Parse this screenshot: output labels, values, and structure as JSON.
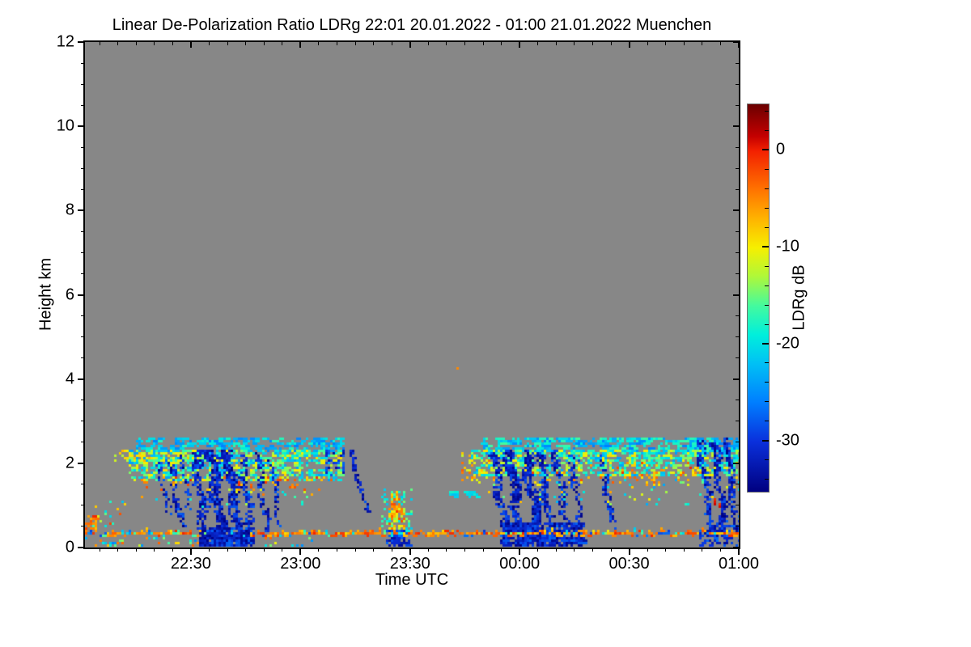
{
  "chart_data": {
    "type": "heatmap",
    "title": "Linear De-Polarization Ratio LDRg   22:01 20.01.2022 - 01:00 21.01.2022 Muenchen",
    "xlabel": "Time UTC",
    "ylabel": "Height km",
    "site": "Muenchen",
    "time_start": "22:01 20.01.2022",
    "time_end": "01:00 21.01.2022",
    "plot_bg": "#878787",
    "frame_color": "#000000",
    "x_axis": {
      "tick_labels": [
        "22:30",
        "23:00",
        "23:30",
        "00:00",
        "00:30",
        "01:00"
      ],
      "tick_minutes": [
        29,
        59,
        89,
        119,
        149,
        179
      ],
      "minor_step_min": 5,
      "range_minutes": [
        0,
        179
      ]
    },
    "y_axis": {
      "tick_labels": [
        "0",
        "2",
        "4",
        "6",
        "8",
        "10",
        "12"
      ],
      "tick_values": [
        0,
        2,
        4,
        6,
        8,
        10,
        12
      ],
      "minor_step_km": 0.5,
      "range_km": [
        0,
        12
      ]
    },
    "colorbar": {
      "label": "LDRg dB",
      "tick_labels": [
        "0",
        "-10",
        "-20",
        "-30"
      ],
      "tick_values": [
        0,
        -10,
        -20,
        -30
      ],
      "minor_step_db": 2,
      "range_db": [
        -35.2,
        4.8
      ],
      "border_color": "#6e6e6e"
    },
    "palette_stops": [
      [
        4.8,
        "#6B0000"
      ],
      [
        1.5,
        "#C40000"
      ],
      [
        0,
        "#F32000"
      ],
      [
        -4,
        "#FF7300"
      ],
      [
        -7,
        "#FFB300"
      ],
      [
        -10,
        "#F6EF00"
      ],
      [
        -13,
        "#AEF83A"
      ],
      [
        -16,
        "#44FA9E"
      ],
      [
        -19,
        "#00EFDC"
      ],
      [
        -22,
        "#00C0F5"
      ],
      [
        -26,
        "#007EFF"
      ],
      [
        -30,
        "#0A30DC"
      ],
      [
        -35.2,
        "#000080"
      ]
    ],
    "seed": 1337,
    "features": [
      {
        "type": "speckle",
        "desc": "left-edge warm specks 22:01",
        "t": [
          0,
          3
        ],
        "h": [
          0.45,
          0.75
        ],
        "density": 0.5,
        "v": [
          -8,
          0
        ],
        "dash": 2
      },
      {
        "type": "speckle",
        "desc": "early scattered specks",
        "t": [
          2,
          12
        ],
        "h": [
          0.35,
          1.05
        ],
        "density": 0.1,
        "v": [
          -22,
          0
        ],
        "dash": 1
      },
      {
        "type": "speckle",
        "desc": "cloud layer 1 top yellow dashes",
        "t": [
          8,
          32
        ],
        "h": [
          2.05,
          2.3
        ],
        "density": 0.3,
        "v": [
          -13,
          -7
        ],
        "dash": 2
      },
      {
        "type": "speckle",
        "desc": "cloud layer 1 cyan cloud-top band",
        "t": [
          14,
          70
        ],
        "h": [
          2.25,
          2.55
        ],
        "density": 0.35,
        "v": [
          -26,
          -17
        ],
        "dash": 3
      },
      {
        "type": "speckle",
        "desc": "cloud layer 1 main speckle 22:13-23:11",
        "t": [
          12,
          70
        ],
        "h": [
          1.6,
          2.3
        ],
        "density": 0.45,
        "v": [
          -24,
          -9
        ],
        "dash": 2
      },
      {
        "type": "speckle",
        "desc": "cloud layer 1 base warm specks",
        "t": [
          15,
          68
        ],
        "h": [
          1.35,
          1.68
        ],
        "density": 0.13,
        "v": [
          -10,
          0
        ],
        "dash": 1
      },
      {
        "type": "speckle",
        "desc": "sparse specks below layer 1",
        "t": [
          14,
          62
        ],
        "h": [
          0.95,
          1.4
        ],
        "density": 0.05,
        "v": [
          -22,
          -4
        ],
        "dash": 1
      },
      {
        "type": "speckle",
        "desc": "sub-line specks left half",
        "t": [
          0,
          62
        ],
        "h": [
          0.04,
          0.26
        ],
        "density": 0.1,
        "v": [
          -26,
          -2
        ],
        "dash": 1
      },
      {
        "type": "speckle",
        "desc": "blue patch at end of layer 1",
        "t": [
          66,
          71
        ],
        "h": [
          1.7,
          2.35
        ],
        "density": 0.35,
        "v": [
          -34,
          -26
        ],
        "dash": 1
      },
      {
        "type": "speckle",
        "desc": "23:25 feature cyan halo",
        "t": [
          81,
          89
        ],
        "h": [
          0.3,
          1.35
        ],
        "density": 0.22,
        "v": [
          -22,
          -14
        ],
        "dash": 1
      },
      {
        "type": "speckle",
        "desc": "23:25 feature warm core upper",
        "t": [
          84,
          86.5
        ],
        "h": [
          0.85,
          1.33
        ],
        "density": 0.55,
        "v": [
          -10,
          -1
        ],
        "dash": 1
      },
      {
        "type": "speckle",
        "desc": "23:25 feature warm core lower",
        "t": [
          83,
          87.5
        ],
        "h": [
          0.3,
          0.9
        ],
        "density": 0.5,
        "v": [
          -14,
          -2
        ],
        "dash": 1
      },
      {
        "type": "speckle",
        "desc": "23:25 feature blue base",
        "t": [
          82.5,
          88.5
        ],
        "h": [
          0.02,
          0.38
        ],
        "density": 0.65,
        "v": [
          -34,
          -26
        ],
        "dash": 2
      },
      {
        "type": "speckle",
        "desc": "isolated cyan dashes in gap 23:41",
        "t": [
          100,
          108
        ],
        "h": [
          1.15,
          1.3
        ],
        "density": 0.35,
        "v": [
          -22,
          -18
        ],
        "dash": 3
      },
      {
        "type": "speckle",
        "desc": "cloud layer 2 onset warm specks",
        "t": [
          103,
          112
        ],
        "h": [
          1.5,
          2.2
        ],
        "density": 0.25,
        "v": [
          -13,
          -2
        ],
        "dash": 1
      },
      {
        "type": "speckle",
        "desc": "cloud layer 2 cyan cloud-top band",
        "t": [
          108,
          179
        ],
        "h": [
          2.2,
          2.58
        ],
        "density": 0.4,
        "v": [
          -26,
          -16
        ],
        "dash": 3
      },
      {
        "type": "speckle",
        "desc": "cloud layer 2 main speckle 23:47-01:00",
        "t": [
          106,
          179
        ],
        "h": [
          1.7,
          2.3
        ],
        "density": 0.42,
        "v": [
          -24,
          -9
        ],
        "dash": 2
      },
      {
        "type": "speckle",
        "desc": "cloud layer 2 warm specks",
        "t": [
          122,
          168
        ],
        "h": [
          1.5,
          2.0
        ],
        "density": 0.09,
        "v": [
          -10,
          0
        ],
        "dash": 1
      },
      {
        "type": "speckle",
        "desc": "sparse specks below layer 2",
        "t": [
          110,
          179
        ],
        "h": [
          1.0,
          1.7
        ],
        "density": 0.05,
        "v": [
          -24,
          -6
        ],
        "dash": 1
      },
      {
        "type": "speckle",
        "desc": "dense blue ground blob 22:32-22:46",
        "t": [
          31,
          45
        ],
        "h": [
          0.0,
          0.45
        ],
        "density": 0.8,
        "v": [
          -35,
          -27
        ],
        "dash": 2
      },
      {
        "type": "speckle",
        "desc": "dense blue ground blob 23:55-00:17",
        "t": [
          114,
          136
        ],
        "h": [
          0.0,
          0.55
        ],
        "density": 0.75,
        "v": [
          -35,
          -27
        ],
        "dash": 2
      },
      {
        "type": "speckle",
        "desc": "orange cluster after 00:30",
        "t": [
          149,
          157
        ],
        "h": [
          1.45,
          1.95
        ],
        "density": 0.18,
        "v": [
          -10,
          -1
        ],
        "dash": 1
      },
      {
        "type": "speckle",
        "desc": "dark red dots 00:53",
        "t": [
          172,
          175
        ],
        "h": [
          0.8,
          1.1
        ],
        "density": 0.25,
        "v": [
          -2,
          3
        ],
        "dash": 1
      },
      {
        "type": "speckle",
        "desc": "bottom-right blue specks",
        "t": [
          168,
          179
        ],
        "h": [
          0.02,
          0.6
        ],
        "density": 0.3,
        "v": [
          -34,
          -26
        ],
        "dash": 2
      },
      {
        "type": "point",
        "desc": "isolated orange dot 23:43 at 4.2 km",
        "t": 102,
        "h": 4.2,
        "v": -5
      },
      {
        "type": "streak",
        "desc": "virga streak 22:21",
        "t0": 20,
        "h": [
          0.75,
          2.0
        ],
        "drift": 2.3,
        "w": 1.2,
        "density": 0.5,
        "v": [
          -35,
          -27
        ],
        "wobble": 0.4
      },
      {
        "type": "streak",
        "desc": "virga streak 22:24",
        "t0": 23,
        "h": [
          0.5,
          2.1
        ],
        "drift": 2.0,
        "w": 1.5,
        "density": 0.55,
        "v": [
          -35,
          -27
        ],
        "wobble": 0.5
      },
      {
        "type": "streak",
        "desc": "virga streak 22:27",
        "t0": 26.5,
        "h": [
          0.9,
          2.2
        ],
        "drift": 1.5,
        "w": 1.2,
        "density": 0.5,
        "v": [
          -35,
          -27
        ],
        "wobble": 0.4
      },
      {
        "type": "streak",
        "desc": "fall streak to ground 22:31",
        "t0": 30,
        "h": [
          0.0,
          2.3
        ],
        "drift": 1.3,
        "w": 2.0,
        "density": 0.7,
        "v": [
          -35,
          -27
        ],
        "wobble": 0.6
      },
      {
        "type": "streak",
        "desc": "dense fall streak to ground 22:35",
        "t0": 34,
        "h": [
          0.0,
          2.3
        ],
        "drift": 1.6,
        "w": 2.6,
        "density": 0.85,
        "v": [
          -35,
          -28
        ],
        "wobble": 0.7
      },
      {
        "type": "streak",
        "desc": "dense fall streak to ground 22:40",
        "t0": 38.5,
        "h": [
          0.0,
          2.3
        ],
        "drift": 1.8,
        "w": 2.3,
        "density": 0.8,
        "v": [
          -35,
          -28
        ],
        "wobble": 0.7
      },
      {
        "type": "streak",
        "desc": "fall streak 22:44",
        "t0": 43,
        "h": [
          0.1,
          2.2
        ],
        "drift": 1.3,
        "w": 1.8,
        "density": 0.7,
        "v": [
          -35,
          -27
        ],
        "wobble": 0.5
      },
      {
        "type": "streak",
        "desc": "virga streak 22:48",
        "t0": 47,
        "h": [
          0.35,
          2.2
        ],
        "drift": 1.5,
        "w": 1.3,
        "density": 0.5,
        "v": [
          -35,
          -27
        ],
        "wobble": 0.4
      },
      {
        "type": "streak",
        "desc": "virga streak 22:52",
        "t0": 51,
        "h": [
          0.5,
          2.1
        ],
        "drift": 1.2,
        "w": 1.0,
        "density": 0.45,
        "v": [
          -35,
          -27
        ],
        "wobble": 0.4
      },
      {
        "type": "streak",
        "desc": "isolated slanted streak 23:14",
        "t0": 72.5,
        "h": [
          0.85,
          2.3
        ],
        "drift": 3.2,
        "w": 0.9,
        "density": 0.8,
        "v": [
          -35,
          -28
        ],
        "wobble": 0.2
      },
      {
        "type": "streak",
        "desc": "fall streak 23:53",
        "t0": 112,
        "h": [
          0.0,
          2.2
        ],
        "drift": 1.5,
        "w": 1.8,
        "density": 0.7,
        "v": [
          -35,
          -27
        ],
        "wobble": 0.6
      },
      {
        "type": "streak",
        "desc": "dense fall streak 23:57",
        "t0": 116,
        "h": [
          0.0,
          2.3
        ],
        "drift": 1.5,
        "w": 2.4,
        "density": 0.85,
        "v": [
          -35,
          -28
        ],
        "wobble": 0.7
      },
      {
        "type": "streak",
        "desc": "dense fall streak 00:02",
        "t0": 120.5,
        "h": [
          0.0,
          2.3
        ],
        "drift": 1.8,
        "w": 2.2,
        "density": 0.8,
        "v": [
          -35,
          -28
        ],
        "wobble": 0.7
      },
      {
        "type": "streak",
        "desc": "fall streak 00:06",
        "t0": 124.5,
        "h": [
          0.2,
          2.3
        ],
        "drift": 1.5,
        "w": 1.8,
        "density": 0.7,
        "v": [
          -35,
          -27
        ],
        "wobble": 0.5
      },
      {
        "type": "streak",
        "desc": "fall streak 00:10",
        "t0": 128.5,
        "h": [
          0.3,
          2.3
        ],
        "drift": 1.8,
        "w": 1.6,
        "density": 0.65,
        "v": [
          -35,
          -27
        ],
        "wobble": 0.5
      },
      {
        "type": "streak",
        "desc": "fall streak 00:14",
        "t0": 133,
        "h": [
          0.3,
          2.2
        ],
        "drift": 1.5,
        "w": 1.6,
        "density": 0.6,
        "v": [
          -35,
          -27
        ],
        "wobble": 0.5
      },
      {
        "type": "streak",
        "desc": "virga streak 00:22",
        "t0": 141,
        "h": [
          0.45,
          2.2
        ],
        "drift": 2.0,
        "w": 1.2,
        "density": 0.5,
        "v": [
          -35,
          -27
        ],
        "wobble": 0.4
      },
      {
        "type": "streak",
        "desc": "fall streak 00:49",
        "t0": 168,
        "h": [
          0.3,
          2.5
        ],
        "drift": 1.8,
        "w": 1.6,
        "density": 0.7,
        "v": [
          -35,
          -27
        ],
        "wobble": 0.5
      },
      {
        "type": "streak",
        "desc": "fall streak 00:53",
        "t0": 172,
        "h": [
          0.1,
          2.5
        ],
        "drift": 1.5,
        "w": 1.8,
        "density": 0.75,
        "v": [
          -35,
          -28
        ],
        "wobble": 0.5
      },
      {
        "type": "streak",
        "desc": "fall streak 00:57",
        "t0": 175.5,
        "h": [
          0.4,
          2.55
        ],
        "drift": 1.2,
        "w": 1.5,
        "density": 0.7,
        "v": [
          -35,
          -27
        ],
        "wobble": 0.4
      },
      {
        "type": "hline",
        "desc": "near-surface clutter line at 0.3 km",
        "t": [
          0,
          179
        ],
        "h_center": 0.3,
        "jitter": 0.09,
        "density": 0.96,
        "warm_frac": 0.78,
        "cyan_frac": 0.13,
        "v_warm": [
          -8,
          0
        ],
        "v_cyan": [
          -21,
          -14
        ],
        "v_cold": [
          -29,
          -24
        ],
        "gaps": [
          [
            33,
            45
          ]
        ],
        "gap_factor": 0.12
      }
    ]
  }
}
